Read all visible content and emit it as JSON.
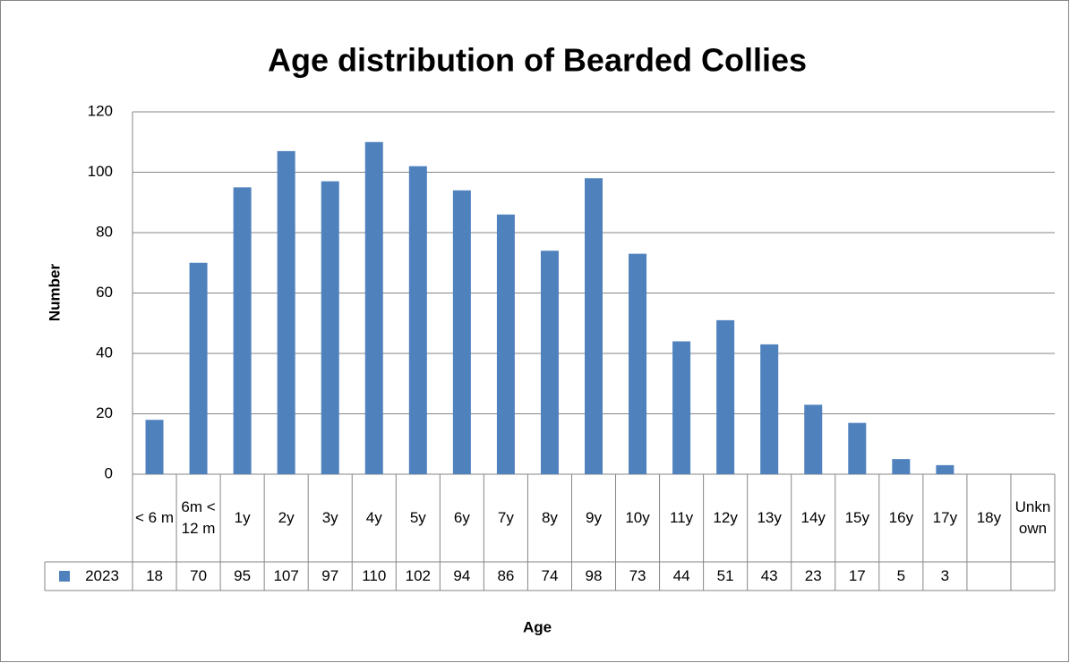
{
  "chart_data": {
    "type": "bar",
    "title": "Age distribution of Bearded Collies",
    "x_label": "Age",
    "y_label": "Number",
    "categories": [
      "< 6 m",
      "6m <12 m",
      "1y",
      "2y",
      "3y",
      "4y",
      "5y",
      "6y",
      "7y",
      "8y",
      "9y",
      "10y",
      "11y",
      "12y",
      "13y",
      "14y",
      "15y",
      "16y",
      "17y",
      "18y",
      "Unknown"
    ],
    "series": [
      {
        "name": "2023",
        "color": "#4f81bd",
        "values": [
          18,
          70,
          95,
          107,
          97,
          110,
          102,
          94,
          86,
          74,
          98,
          73,
          44,
          51,
          43,
          23,
          17,
          5,
          3,
          null,
          null
        ]
      }
    ],
    "ylim": [
      0,
      120
    ],
    "yticks": [
      0,
      20,
      40,
      60,
      80,
      100,
      120
    ],
    "grid": true
  }
}
